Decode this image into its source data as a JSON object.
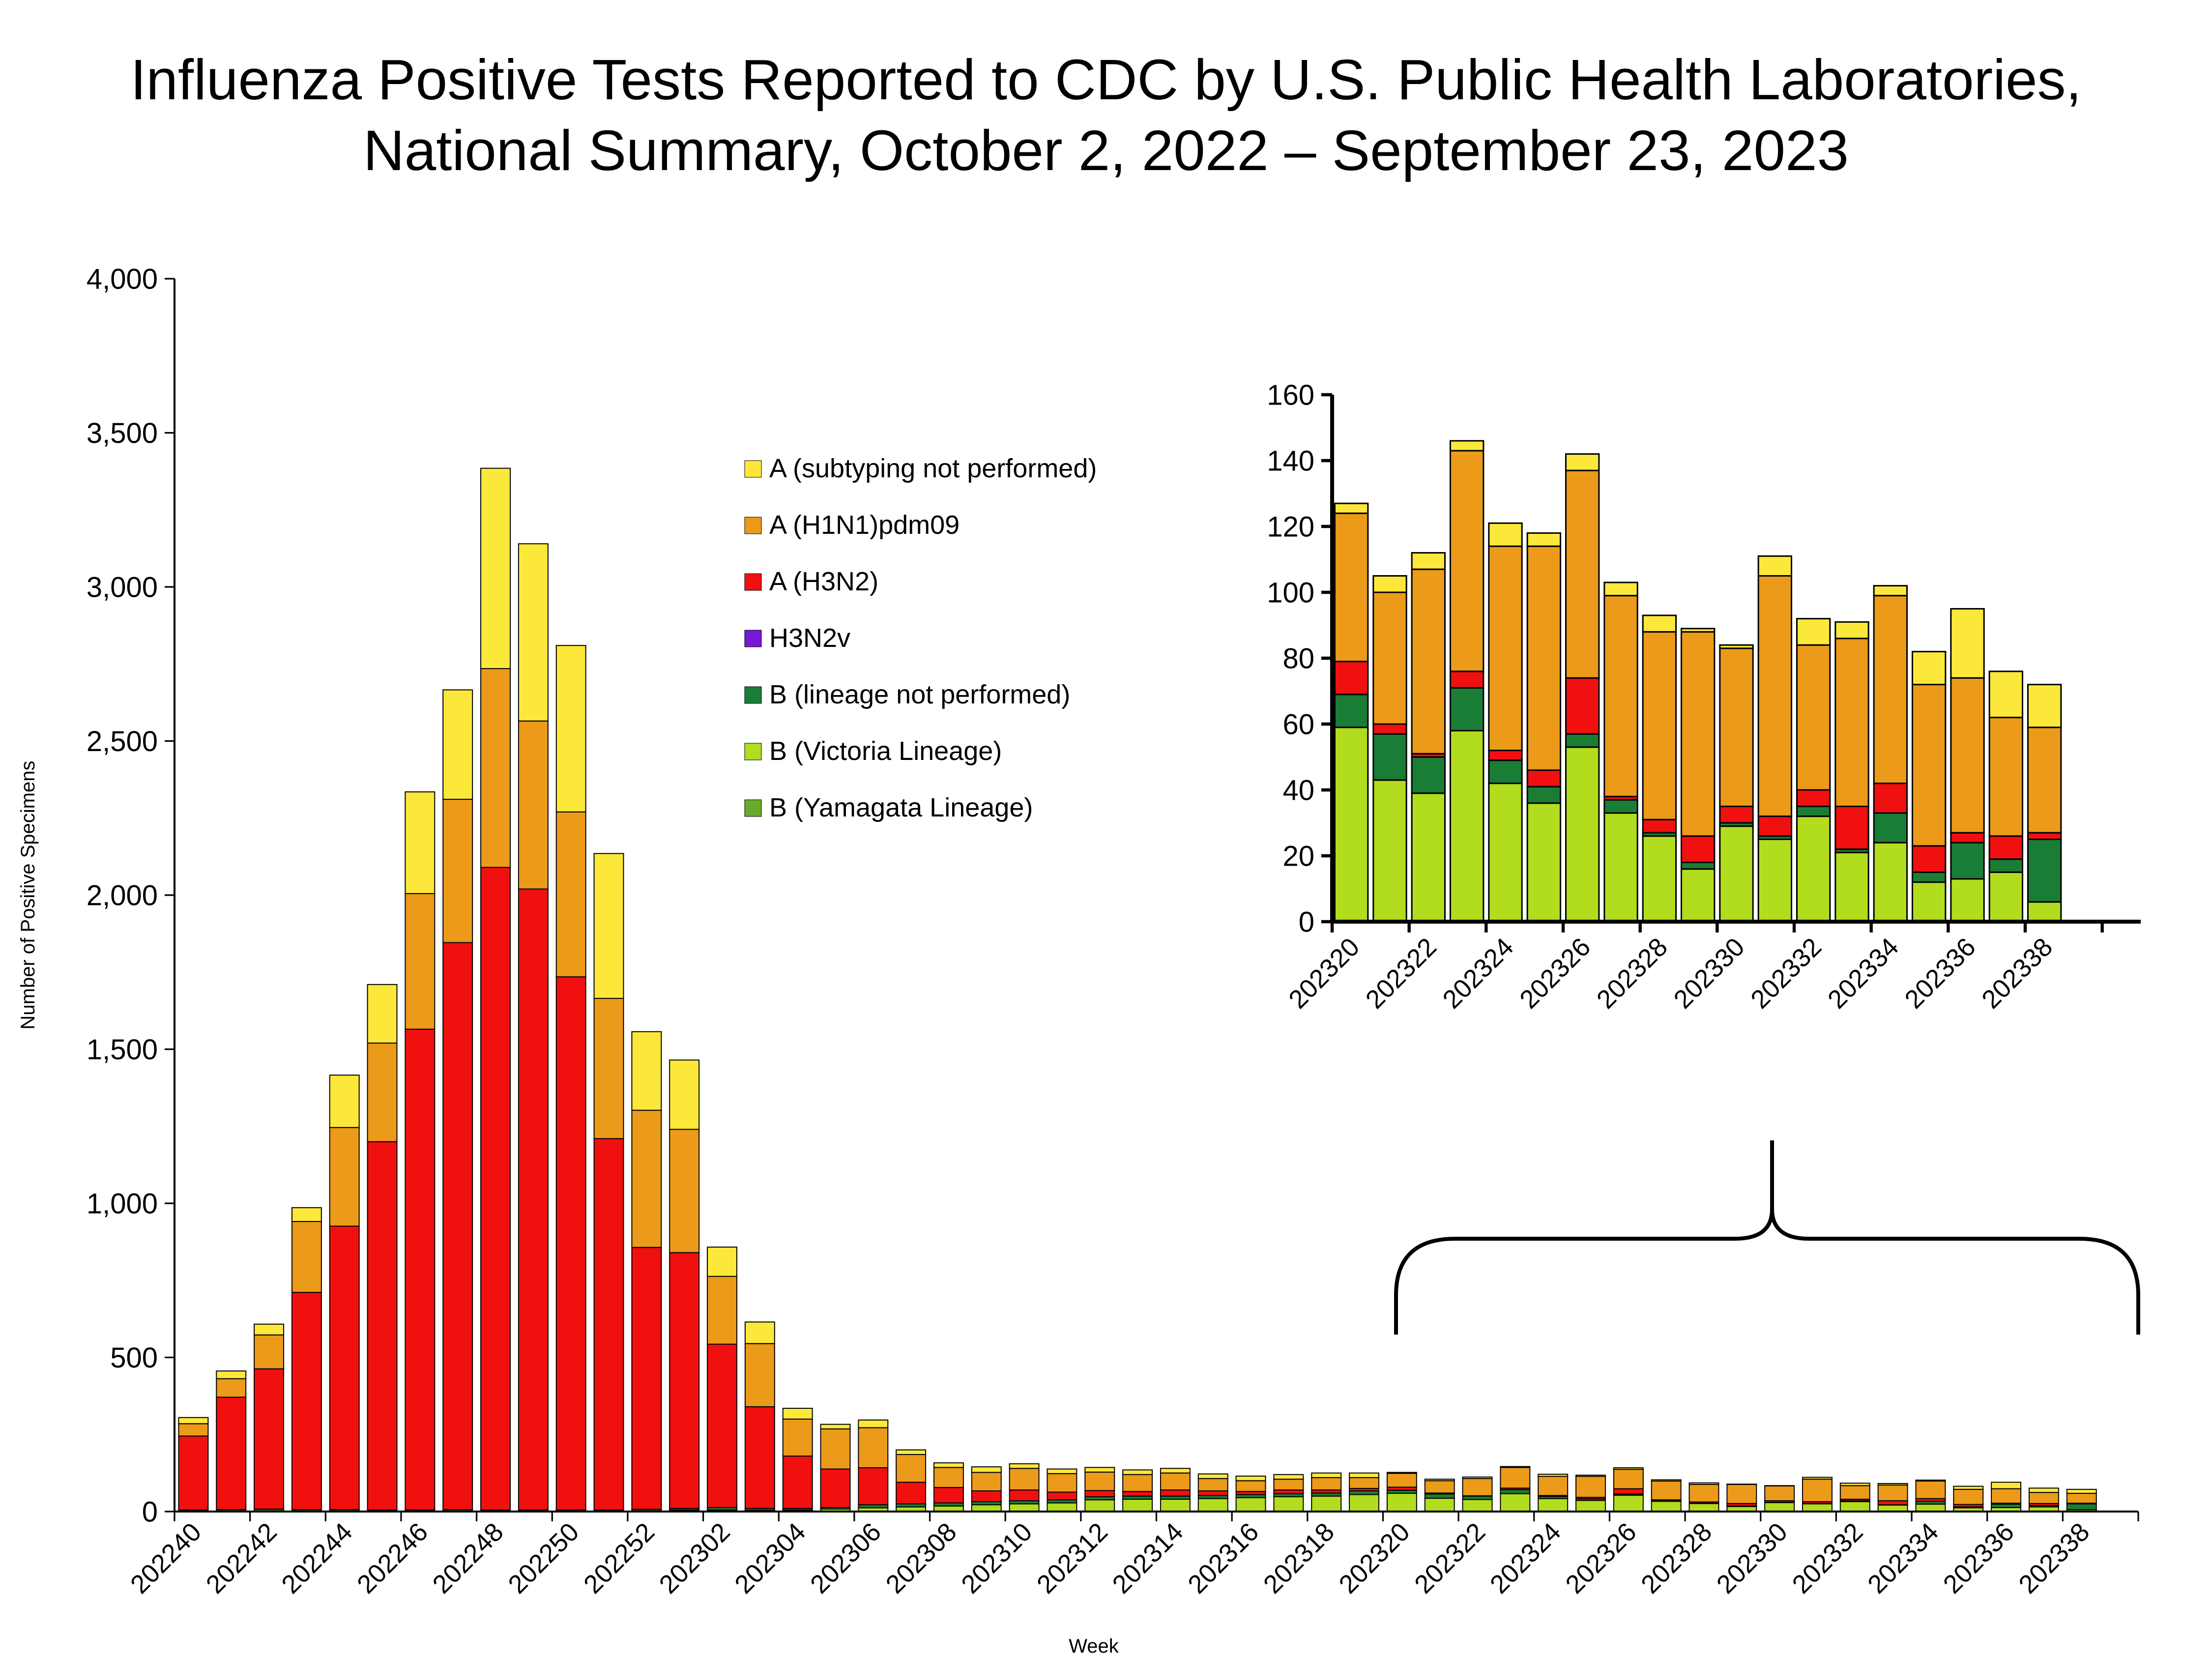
{
  "title": {
    "line1": "Influenza Positive Tests Reported to CDC by U.S. Public Health Laboratories,",
    "line2": "National Summary, October 2, 2022 – September 23, 2023"
  },
  "chart_data": [
    {
      "type": "bar",
      "stacked": true,
      "xlabel": "Week",
      "ylabel": "Number of Positive Specimens",
      "ylim": [
        0,
        4000
      ],
      "yticks": [
        0,
        500,
        1000,
        1500,
        2000,
        2500,
        3000,
        3500,
        4000
      ],
      "ytick_labels": [
        "0",
        "500",
        "1,000",
        "1,500",
        "2,000",
        "2,500",
        "3,000",
        "3,500",
        "4,000"
      ],
      "xtick_labels": [
        "202240",
        "202242",
        "202244",
        "202246",
        "202248",
        "202250",
        "202252",
        "202302",
        "202304",
        "202306",
        "202308",
        "202310",
        "202312",
        "202314",
        "202316",
        "202318",
        "202320",
        "202322",
        "202324",
        "202326",
        "202328",
        "202330",
        "202332",
        "202334",
        "202336",
        "202338"
      ],
      "categories": [
        "202240",
        "202241",
        "202242",
        "202243",
        "202244",
        "202245",
        "202246",
        "202247",
        "202248",
        "202249",
        "202250",
        "202251",
        "202252",
        "202301",
        "202302",
        "202303",
        "202304",
        "202305",
        "202306",
        "202307",
        "202308",
        "202309",
        "202310",
        "202311",
        "202312",
        "202313",
        "202314",
        "202315",
        "202316",
        "202317",
        "202318",
        "202319",
        "202320",
        "202321",
        "202322",
        "202323",
        "202324",
        "202325",
        "202326",
        "202327",
        "202328",
        "202329",
        "202330",
        "202331",
        "202332",
        "202333",
        "202334",
        "202335",
        "202336",
        "202337",
        "202338"
      ],
      "series": [
        {
          "name": "B (Yamagata Lineage)",
          "color": "#6aaa2a",
          "values": [
            0,
            0,
            0,
            0,
            0,
            0,
            0,
            0,
            0,
            0,
            0,
            0,
            0,
            0,
            0,
            0,
            0,
            0,
            0,
            0,
            0,
            0,
            0,
            0,
            0,
            0,
            0,
            0,
            0,
            0,
            0,
            0,
            0,
            0,
            0,
            0,
            0,
            0,
            0,
            0,
            0,
            0,
            0,
            0,
            0,
            0,
            0,
            0,
            0,
            0,
            0
          ]
        },
        {
          "name": "B (Victoria Lineage)",
          "color": "#b2dc1e",
          "values": [
            0,
            0,
            0,
            0,
            0,
            0,
            0,
            0,
            0,
            0,
            0,
            0,
            2,
            5,
            5,
            4,
            5,
            8,
            12,
            15,
            18,
            22,
            25,
            28,
            38,
            40,
            40,
            42,
            45,
            48,
            50,
            55,
            59,
            43,
            39,
            58,
            42,
            36,
            53,
            33,
            26,
            16,
            29,
            25,
            32,
            21,
            24,
            12,
            13,
            15,
            6
          ]
        },
        {
          "name": "B (lineage not performed)",
          "color": "#1a7d36",
          "values": [
            5,
            6,
            8,
            6,
            6,
            5,
            5,
            6,
            5,
            5,
            5,
            5,
            5,
            5,
            8,
            6,
            5,
            5,
            10,
            10,
            10,
            10,
            10,
            10,
            10,
            10,
            10,
            10,
            10,
            10,
            10,
            12,
            10,
            14,
            11,
            13,
            7,
            5,
            4,
            4,
            1,
            2,
            1,
            1,
            3,
            1,
            9,
            3,
            11,
            4,
            19
          ]
        },
        {
          "name": "H3N2v",
          "color": "#7a16d8",
          "values": [
            0,
            0,
            0,
            0,
            0,
            0,
            0,
            0,
            0,
            0,
            0,
            0,
            0,
            0,
            0,
            0,
            0,
            0,
            0,
            0,
            0,
            0,
            0,
            0,
            0,
            0,
            0,
            0,
            0,
            0,
            0,
            0,
            0,
            0,
            0,
            0,
            0,
            0,
            0,
            0,
            0,
            0,
            0,
            0,
            0,
            0,
            0,
            0,
            0,
            0,
            0
          ]
        },
        {
          "name": "A (H3N2)",
          "color": "#f01010",
          "values": [
            240,
            365,
            455,
            705,
            920,
            1195,
            1560,
            1840,
            2085,
            2015,
            1730,
            1205,
            850,
            830,
            530,
            330,
            170,
            125,
            120,
            70,
            50,
            35,
            35,
            25,
            20,
            15,
            20,
            15,
            10,
            12,
            10,
            8,
            10,
            3,
            1,
            5,
            3,
            5,
            17,
            1,
            4,
            8,
            5,
            6,
            5,
            13,
            9,
            8,
            3,
            7,
            2
          ]
        },
        {
          "name": "A (H1N1)pdm09",
          "color": "#ec9a1a",
          "values": [
            40,
            60,
            110,
            230,
            320,
            320,
            440,
            465,
            645,
            545,
            535,
            455,
            445,
            400,
            220,
            205,
            120,
            130,
            130,
            90,
            65,
            60,
            70,
            60,
            60,
            55,
            55,
            40,
            35,
            35,
            40,
            35,
            45,
            40,
            56,
            67,
            62,
            68,
            63,
            61,
            57,
            62,
            48,
            73,
            44,
            51,
            57,
            49,
            47,
            36,
            32
          ]
        },
        {
          "name": "A (subtyping not performed)",
          "color": "#fce83a",
          "values": [
            20,
            25,
            35,
            45,
            170,
            190,
            330,
            355,
            650,
            575,
            540,
            470,
            255,
            225,
            95,
            70,
            35,
            15,
            25,
            15,
            15,
            18,
            15,
            15,
            15,
            15,
            15,
            15,
            15,
            15,
            15,
            15,
            3,
            5,
            5,
            3,
            7,
            4,
            5,
            4,
            5,
            1,
            1,
            6,
            8,
            5,
            3,
            10,
            21,
            14,
            13
          ]
        }
      ]
    },
    {
      "type": "bar",
      "stacked": true,
      "inset": true,
      "ylim": [
        0,
        160
      ],
      "yticks": [
        0,
        20,
        40,
        60,
        80,
        100,
        120,
        140,
        160
      ],
      "ytick_labels": [
        "0",
        "20",
        "40",
        "60",
        "80",
        "100",
        "120",
        "140",
        "160"
      ],
      "xtick_labels": [
        "202320",
        "202322",
        "202324",
        "202326",
        "202328",
        "202330",
        "202332",
        "202334",
        "202336",
        "202338"
      ],
      "categories": [
        "202320",
        "202321",
        "202322",
        "202323",
        "202324",
        "202325",
        "202326",
        "202327",
        "202328",
        "202329",
        "202330",
        "202331",
        "202332",
        "202333",
        "202334",
        "202335",
        "202336",
        "202337",
        "202338"
      ],
      "series": [
        {
          "name": "B (Victoria Lineage)",
          "color": "#b2dc1e",
          "values": [
            59,
            43,
            39,
            58,
            42,
            36,
            53,
            33,
            26,
            16,
            29,
            25,
            32,
            21,
            24,
            12,
            13,
            15,
            6
          ]
        },
        {
          "name": "B (lineage not performed)",
          "color": "#1a7d36",
          "values": [
            10,
            14,
            11,
            13,
            7,
            5,
            4,
            4,
            1,
            2,
            1,
            1,
            3,
            1,
            9,
            3,
            11,
            4,
            19
          ]
        },
        {
          "name": "A (H3N2)",
          "color": "#f01010",
          "values": [
            10,
            3,
            1,
            5,
            3,
            5,
            17,
            1,
            4,
            8,
            5,
            6,
            5,
            13,
            9,
            8,
            3,
            7,
            2
          ]
        },
        {
          "name": "A (H1N1)pdm09",
          "color": "#ec9a1a",
          "values": [
            45,
            40,
            56,
            67,
            62,
            68,
            63,
            61,
            57,
            62,
            48,
            73,
            44,
            51,
            57,
            49,
            47,
            36,
            32
          ]
        },
        {
          "name": "A (subtyping not performed)",
          "color": "#fce83a",
          "values": [
            3,
            5,
            5,
            3,
            7,
            4,
            5,
            4,
            5,
            1,
            1,
            6,
            8,
            5,
            3,
            10,
            21,
            14,
            13
          ]
        }
      ]
    }
  ],
  "legend": [
    {
      "label": "A (subtyping not performed)",
      "color": "#fce83a"
    },
    {
      "label": "A (H1N1)pdm09",
      "color": "#ec9a1a"
    },
    {
      "label": "A (H3N2)",
      "color": "#f01010"
    },
    {
      "label": "H3N2v",
      "color": "#7a16d8"
    },
    {
      "label": "B (lineage not performed)",
      "color": "#1a7d36"
    },
    {
      "label": "B (Victoria Lineage)",
      "color": "#b2dc1e"
    },
    {
      "label": "B (Yamagata Lineage)",
      "color": "#6aaa2a"
    }
  ]
}
